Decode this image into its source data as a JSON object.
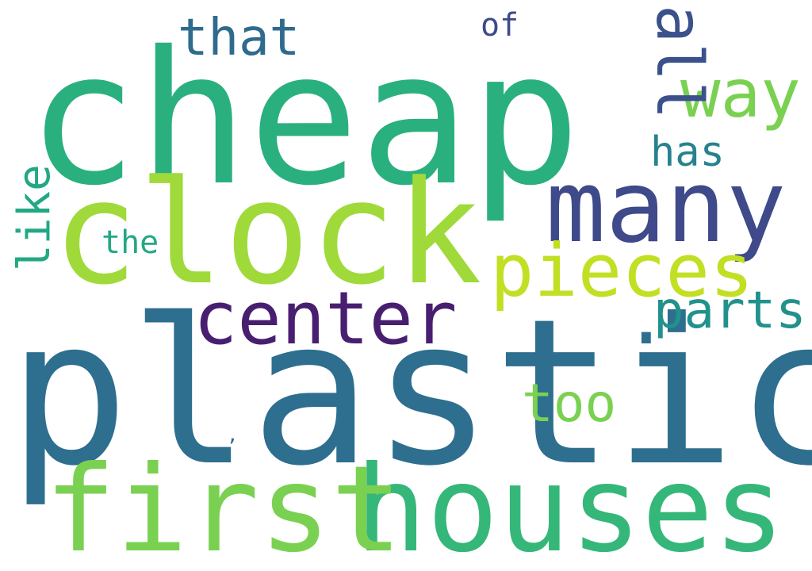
{
  "words": [
    {
      "text": "cheap",
      "color": "#2ab07f"
    },
    {
      "text": "plastic",
      "color": "#2e6e8e"
    },
    {
      "text": "clock",
      "color": "#9fda3a"
    },
    {
      "text": "houses",
      "color": "#35b779"
    },
    {
      "text": "first",
      "color": "#7ad151"
    },
    {
      "text": "many",
      "color": "#3e4a89"
    },
    {
      "text": "pieces",
      "color": "#c2df23"
    },
    {
      "text": "center",
      "color": "#481f70"
    },
    {
      "text": "parts",
      "color": "#21918c"
    },
    {
      "text": "way",
      "color": "#7ad151"
    },
    {
      "text": "that",
      "color": "#2f6b8e"
    },
    {
      "text": "all",
      "color": "#3b518b"
    },
    {
      "text": "too",
      "color": "#7ad151"
    },
    {
      "text": "has",
      "color": "#26828e"
    },
    {
      "text": "like",
      "color": "#22a884"
    },
    {
      "text": "the",
      "color": "#22a884"
    },
    {
      "text": "of",
      "color": "#3e4a89"
    },
    {
      "text": ".",
      "color": "#2e6e8e"
    },
    {
      "text": ",",
      "color": "#2e6e8e"
    }
  ]
}
